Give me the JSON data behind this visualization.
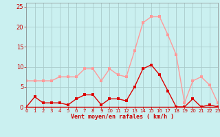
{
  "hours": [
    0,
    1,
    2,
    3,
    4,
    5,
    6,
    7,
    8,
    9,
    10,
    11,
    12,
    13,
    14,
    15,
    16,
    17,
    18,
    19,
    20,
    21,
    22,
    23
  ],
  "vent_moyen": [
    0,
    2.5,
    1,
    1,
    1,
    0.5,
    2,
    3,
    3,
    0.5,
    2,
    2,
    1.5,
    5,
    9.5,
    10.5,
    8,
    4,
    0,
    0,
    2,
    0,
    0.5,
    0
  ],
  "vent_rafales": [
    6.5,
    6.5,
    6.5,
    6.5,
    7.5,
    7.5,
    7.5,
    9.5,
    9.5,
    6.5,
    9.5,
    8,
    7.5,
    14,
    21,
    22.5,
    22.5,
    18,
    13,
    1,
    6.5,
    7.5,
    5.5,
    1
  ],
  "color_moyen": "#dd0000",
  "color_rafales": "#ff9999",
  "bg_color": "#caf0f0",
  "grid_color": "#aacccc",
  "xlabel": "Vent moyen/en rafales ( km/h )",
  "ylim": [
    0,
    26
  ],
  "yticks": [
    0,
    5,
    10,
    15,
    20,
    25
  ],
  "xlabel_color": "#cc0000",
  "tick_color": "#cc0000",
  "spine_color": "#888888",
  "line_width": 1.0,
  "marker_size": 2.5
}
